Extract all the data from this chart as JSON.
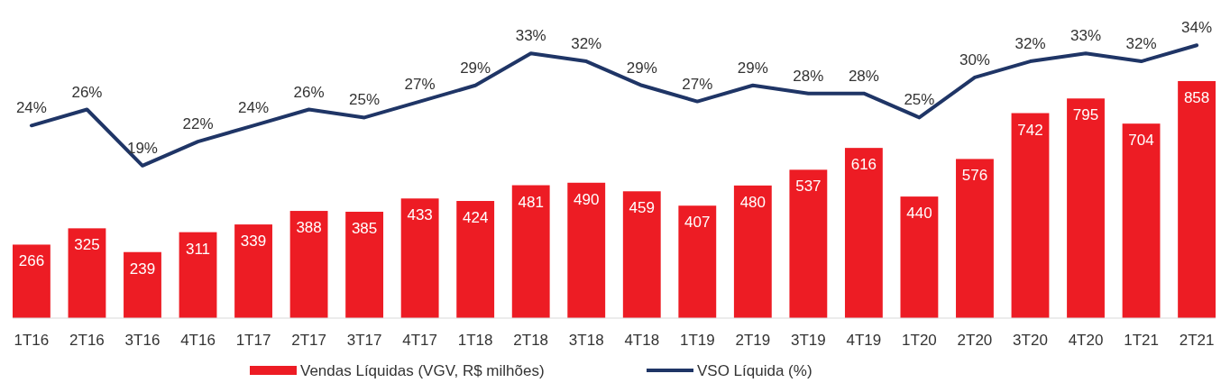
{
  "chart_data": {
    "type": "bar",
    "categories": [
      "1T16",
      "2T16",
      "3T16",
      "4T16",
      "1T17",
      "2T17",
      "3T17",
      "4T17",
      "1T18",
      "2T18",
      "3T18",
      "4T18",
      "1T19",
      "2T19",
      "3T19",
      "4T19",
      "1T20",
      "2T20",
      "3T20",
      "4T20",
      "1T21",
      "2T21"
    ],
    "series": [
      {
        "name": "Vendas Líquidas (VGV, R$ milhões)",
        "color": "#ed1c24",
        "values": [
          266,
          325,
          239,
          311,
          339,
          388,
          385,
          433,
          424,
          481,
          490,
          459,
          407,
          480,
          537,
          616,
          440,
          576,
          742,
          795,
          704,
          858
        ]
      },
      {
        "name": "VSO Líquida (%)",
        "type": "line",
        "axis": "y2",
        "color": "#1f3566",
        "values": [
          24,
          26,
          19,
          22,
          24,
          26,
          25,
          27,
          29,
          33,
          32,
          29,
          27,
          29,
          28,
          28,
          25,
          30,
          32,
          33,
          32,
          34
        ],
        "value_labels": [
          "24%",
          "26%",
          "19%",
          "22%",
          "24%",
          "26%",
          "25%",
          "27%",
          "29%",
          "33%",
          "32%",
          "29%",
          "27%",
          "29%",
          "28%",
          "28%",
          "25%",
          "30%",
          "32%",
          "33%",
          "32%",
          "34%"
        ]
      }
    ],
    "tick_labels": "x",
    "data_labels": true,
    "legend": "bottom",
    "marker": "none"
  }
}
